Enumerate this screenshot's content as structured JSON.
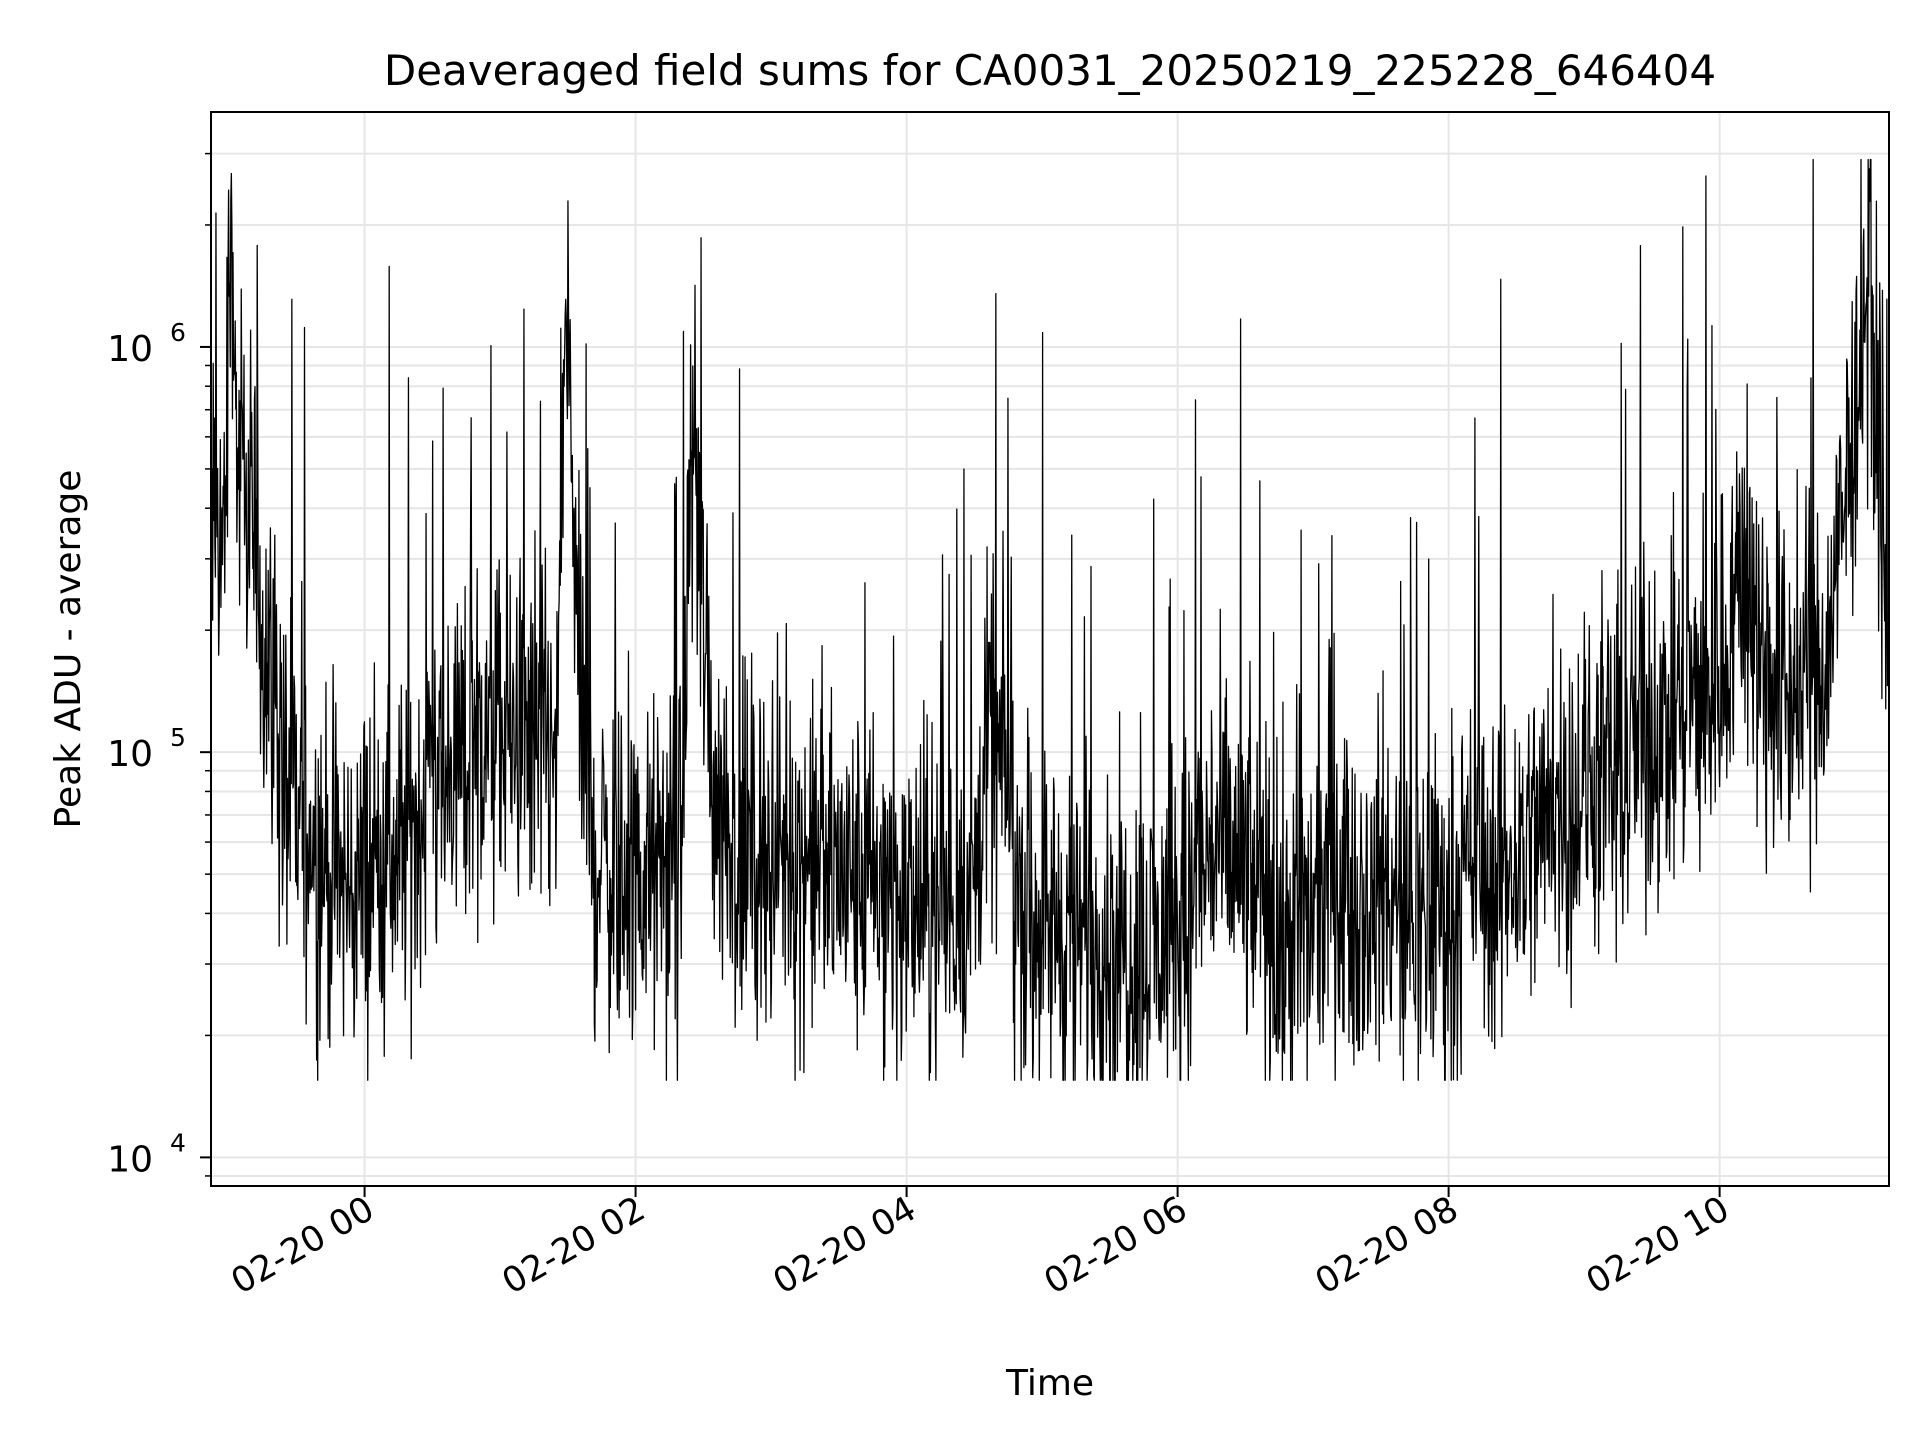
{
  "chart_data": {
    "type": "line",
    "title": "Deaveraged field sums for CA0031_20250219_225228_646404",
    "xlabel": "Time",
    "ylabel": "Peak ADU - average",
    "y_scale": "log",
    "ylim": [
      8500,
      3800000
    ],
    "xlim": [
      "2025-02-19 22:52",
      "2025-02-20 11:15"
    ],
    "grid": true,
    "line_color": "#000000",
    "grid_color": "#e6e6e6",
    "x_ticks": [
      {
        "t": "2025-02-20 00:00",
        "label": "02-20 00"
      },
      {
        "t": "2025-02-20 02:00",
        "label": "02-20 02"
      },
      {
        "t": "2025-02-20 04:00",
        "label": "02-20 04"
      },
      {
        "t": "2025-02-20 06:00",
        "label": "02-20 06"
      },
      {
        "t": "2025-02-20 08:00",
        "label": "02-20 08"
      },
      {
        "t": "2025-02-20 10:00",
        "label": "02-20 10"
      }
    ],
    "y_ticks": [
      {
        "value": 10000,
        "base": "10",
        "exp": "4"
      },
      {
        "value": 100000,
        "base": "10",
        "exp": "5"
      },
      {
        "value": 1000000,
        "base": "10",
        "exp": "6"
      }
    ],
    "series": [
      {
        "points": [
          [
            "2025-02-19 22:52",
            330000
          ],
          [
            "2025-02-19 22:55",
            380000
          ],
          [
            "2025-02-19 22:58",
            340000
          ],
          [
            "2025-02-19 23:01",
            2700000
          ],
          [
            "2025-02-19 23:03",
            600000
          ],
          [
            "2025-02-19 23:06",
            420000
          ],
          [
            "2025-02-19 23:10",
            380000
          ],
          [
            "2025-02-19 23:15",
            200000
          ],
          [
            "2025-02-19 23:20",
            150000
          ],
          [
            "2025-02-19 23:25",
            80000
          ],
          [
            "2025-02-19 23:30",
            70000
          ],
          [
            "2025-02-19 23:38",
            60000
          ],
          [
            "2025-02-19 23:45",
            50000
          ],
          [
            "2025-02-19 23:52",
            45000
          ],
          [
            "2025-02-20 00:00",
            50000
          ],
          [
            "2025-02-20 00:10",
            55000
          ],
          [
            "2025-02-20 00:20",
            60000
          ],
          [
            "2025-02-20 00:30",
            90000
          ],
          [
            "2025-02-20 00:40",
            95000
          ],
          [
            "2025-02-20 00:50",
            100000
          ],
          [
            "2025-02-20 01:00",
            110000
          ],
          [
            "2025-02-20 01:10",
            105000
          ],
          [
            "2025-02-20 01:20",
            95000
          ],
          [
            "2025-02-20 01:25",
            90000
          ],
          [
            "2025-02-20 01:29",
            1350000
          ],
          [
            "2025-02-20 01:35",
            150000
          ],
          [
            "2025-02-20 01:40",
            60000
          ],
          [
            "2025-02-20 01:50",
            50000
          ],
          [
            "2025-02-20 02:00",
            48000
          ],
          [
            "2025-02-20 02:10",
            50000
          ],
          [
            "2025-02-20 02:20",
            55000
          ],
          [
            "2025-02-20 02:25",
            700000
          ],
          [
            "2025-02-20 02:35",
            80000
          ],
          [
            "2025-02-20 02:45",
            60000
          ],
          [
            "2025-02-20 03:00",
            55000
          ],
          [
            "2025-02-20 03:15",
            55000
          ],
          [
            "2025-02-20 03:30",
            50000
          ],
          [
            "2025-02-20 03:45",
            45000
          ],
          [
            "2025-02-20 04:00",
            42000
          ],
          [
            "2025-02-20 04:15",
            42000
          ],
          [
            "2025-02-20 04:30",
            45000
          ],
          [
            "2025-02-20 04:35",
            100000
          ],
          [
            "2025-02-20 04:45",
            90000
          ],
          [
            "2025-02-20 04:50",
            45000
          ],
          [
            "2025-02-20 05:00",
            40000
          ],
          [
            "2025-02-20 05:15",
            35000
          ],
          [
            "2025-02-20 05:30",
            35000
          ],
          [
            "2025-02-20 05:45",
            32000
          ],
          [
            "2025-02-20 06:00",
            35000
          ],
          [
            "2025-02-20 06:15",
            60000
          ],
          [
            "2025-02-20 06:30",
            50000
          ],
          [
            "2025-02-20 06:45",
            35000
          ],
          [
            "2025-02-20 07:00",
            40000
          ],
          [
            "2025-02-20 07:15",
            45000
          ],
          [
            "2025-02-20 07:30",
            42000
          ],
          [
            "2025-02-20 07:45",
            40000
          ],
          [
            "2025-02-20 08:00",
            42000
          ],
          [
            "2025-02-20 08:15",
            50000
          ],
          [
            "2025-02-20 08:30",
            55000
          ],
          [
            "2025-02-20 08:45",
            70000
          ],
          [
            "2025-02-20 09:00",
            80000
          ],
          [
            "2025-02-20 09:15",
            95000
          ],
          [
            "2025-02-20 09:30",
            110000
          ],
          [
            "2025-02-20 09:45",
            130000
          ],
          [
            "2025-02-20 10:00",
            160000
          ],
          [
            "2025-02-20 10:10",
            300000
          ],
          [
            "2025-02-20 10:15",
            200000
          ],
          [
            "2025-02-20 10:30",
            140000
          ],
          [
            "2025-02-20 10:45",
            150000
          ],
          [
            "2025-02-20 10:55",
            350000
          ],
          [
            "2025-02-20 11:05",
            1300000
          ],
          [
            "2025-02-20 11:10",
            700000
          ],
          [
            "2025-02-20 11:15",
            120000
          ]
        ]
      }
    ]
  }
}
